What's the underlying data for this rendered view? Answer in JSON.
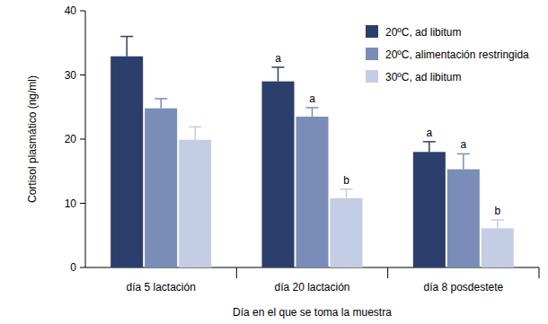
{
  "chart_data": {
    "type": "bar",
    "x_label": "Día en el que se toma la muestra",
    "y_label": "Cortisol plasmático (ng/ml)",
    "categories": [
      "día 5 lactación",
      "día 20 lactación",
      "día 8 posdestete"
    ],
    "series": [
      {
        "name": "20ºC, ad libitum",
        "color": "#2c3e6b",
        "values": [
          32.9,
          29,
          18
        ],
        "errors": [
          3.1,
          2.2,
          1.6
        ],
        "letters": [
          null,
          "a",
          "a"
        ]
      },
      {
        "name": "20ºC, alimentación restringida",
        "color": "#7a8db8",
        "values": [
          24.8,
          23.5,
          15.3
        ],
        "errors": [
          1.5,
          1.4,
          2.4
        ],
        "letters": [
          null,
          "a",
          "a"
        ]
      },
      {
        "name": "30ºC, ad libitum",
        "color": "#c3cde3",
        "values": [
          19.9,
          10.8,
          6.1
        ],
        "errors": [
          2.0,
          1.4,
          1.3
        ],
        "letters": [
          null,
          "b",
          "b"
        ]
      }
    ],
    "ylim": [
      0,
      40
    ],
    "yticks": [
      0,
      10,
      20,
      30,
      40
    ],
    "legend": "upper right",
    "grid": false
  }
}
